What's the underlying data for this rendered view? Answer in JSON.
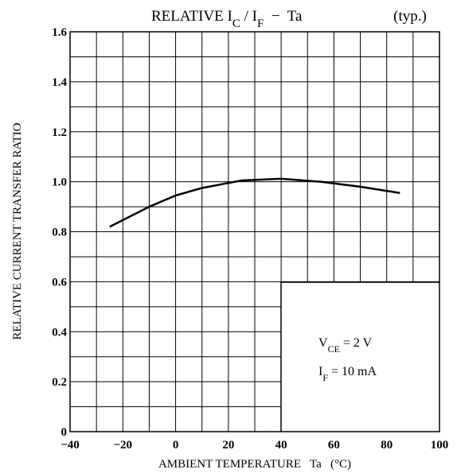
{
  "chart_data": {
    "type": "line",
    "title": [
      "RELATIVE I",
      "C",
      " / I",
      "F",
      "  −  Ta"
    ],
    "subtitle": "(typ.)",
    "xlabel": "AMBIENT TEMPERATURE   Ta   (°C)",
    "ylabel": "RELATIVE CURRENT TRANSFER RATIO",
    "annotations": [
      [
        "V",
        "CE",
        " = 2 V"
      ],
      [
        "I",
        "F",
        " = 10 mA"
      ]
    ],
    "x": [
      -25,
      -10,
      0,
      10,
      20,
      25,
      40,
      55,
      70,
      85
    ],
    "series": [
      {
        "name": "IC/IF",
        "color": "#000000",
        "values": [
          0.82,
          0.9,
          0.945,
          0.975,
          0.995,
          1.005,
          1.012,
          1.0,
          0.98,
          0.955
        ]
      }
    ],
    "xlim": [
      -40,
      100
    ],
    "ylim": [
      0,
      1.6
    ],
    "xticks": [
      {
        "value": -40,
        "label": "−40"
      },
      {
        "value": -20,
        "label": "−20"
      },
      0,
      20,
      40,
      60,
      80,
      100
    ],
    "yticks": [
      0,
      0.2,
      0.4,
      0.6,
      0.8,
      {
        "value": 1,
        "label": "1.0"
      },
      1.2,
      1.4,
      1.6
    ],
    "xgrid": [
      -30,
      -10,
      10,
      30,
      50,
      70,
      90
    ],
    "ygrid": [
      0.1,
      0.3,
      0.5,
      0.7,
      0.9,
      1.1,
      1.3,
      1.5
    ],
    "grid": true
  }
}
